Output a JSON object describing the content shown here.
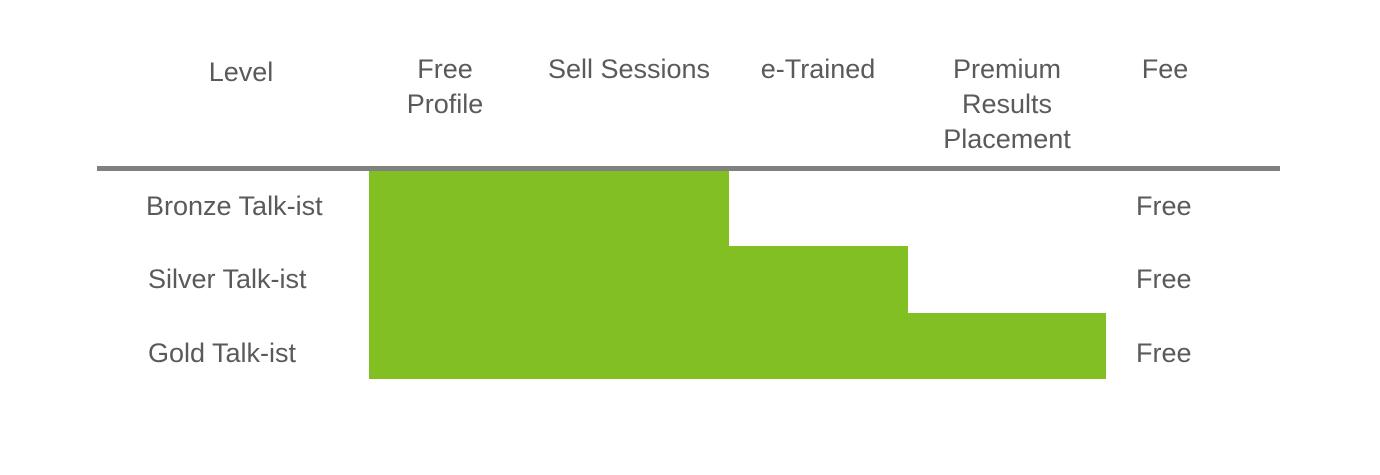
{
  "colors": {
    "text": "#5a5a5a",
    "divider": "#808080",
    "included": "#82bf22"
  },
  "headers": [
    "Level",
    "Free\nProfile",
    "Sell Sessions",
    "e-Trained",
    "Premium\nResults\nPlacement",
    "Fee"
  ],
  "levels": [
    {
      "name": "Bronze Talk-ist",
      "fee": "Free",
      "features": [
        true,
        true,
        false,
        false
      ]
    },
    {
      "name": "Silver Talk-ist",
      "fee": "Free",
      "features": [
        true,
        true,
        true,
        false
      ]
    },
    {
      "name": "Gold Talk-ist",
      "fee": "Free",
      "features": [
        true,
        true,
        true,
        true
      ]
    }
  ]
}
